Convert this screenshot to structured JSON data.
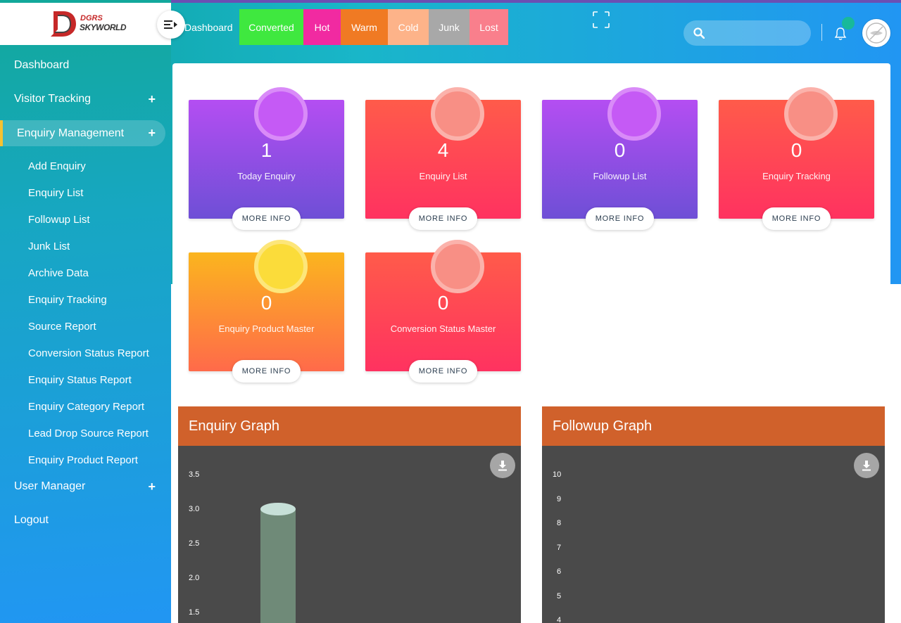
{
  "sidebar": {
    "logo_top": "DGRS",
    "logo_bottom": "SKYWORLD",
    "items": [
      {
        "label": "Dashboard",
        "expandable": false
      },
      {
        "label": "Visitor Tracking",
        "expandable": true
      },
      {
        "label": "Enquiry Management",
        "expandable": true,
        "active": true
      },
      {
        "label": "User Manager",
        "expandable": true
      },
      {
        "label": "Logout",
        "expandable": false
      }
    ],
    "expand_symbol": "+",
    "sub_items": [
      "Add Enquiry",
      "Enquiry List",
      "Followup List",
      "Junk List",
      "Archive Data",
      "Enquiry Tracking",
      "Source Report",
      "Conversion Status Report",
      "Enquiry Status Report",
      "Enquiry Category Report",
      "Lead Drop Source Report",
      "Enquiry Product Report"
    ]
  },
  "header": {
    "breadcrumb": "Dashboard",
    "status_tabs": [
      {
        "label": "Converted",
        "color": "#3fe83f"
      },
      {
        "label": "Hot",
        "color": "#f12aa1"
      },
      {
        "label": "Warm",
        "color": "#f07a23"
      },
      {
        "label": "Cold",
        "color": "#fdb389"
      },
      {
        "label": "Junk",
        "color": "#a8a8a8"
      },
      {
        "label": "Lost",
        "color": "#f97f8c"
      }
    ],
    "search": {
      "value": "",
      "placeholder": ""
    }
  },
  "tiles": [
    {
      "count": "1",
      "label": "Today Enquiry",
      "style": "purple"
    },
    {
      "count": "4",
      "label": "Enquiry List",
      "style": "red"
    },
    {
      "count": "0",
      "label": "Followup List",
      "style": "purple"
    },
    {
      "count": "0",
      "label": "Enquiry Tracking",
      "style": "red"
    },
    {
      "count": "0",
      "label": "Enquiry Product Master",
      "style": "orange"
    },
    {
      "count": "0",
      "label": "Conversion Status Master",
      "style": "red"
    }
  ],
  "more_info_label": "MORE INFO",
  "graphs": {
    "enquiry": {
      "title": "Enquiry Graph"
    },
    "followup": {
      "title": "Followup Graph"
    }
  },
  "chart_data": [
    {
      "type": "bar",
      "title": "Enquiry Graph",
      "y_ticks": [
        "3.5",
        "3.0",
        "2.5",
        "2.0",
        "1.5"
      ],
      "categories": [
        ""
      ],
      "values": [
        3.0
      ],
      "ylim": [
        1.5,
        3.5
      ],
      "bar_color": "#6f8a78"
    },
    {
      "type": "bar",
      "title": "Followup Graph",
      "y_ticks": [
        "10",
        "9",
        "8",
        "7",
        "6",
        "5",
        "4"
      ],
      "categories": [],
      "values": [],
      "ylim": [
        4,
        10
      ]
    }
  ]
}
